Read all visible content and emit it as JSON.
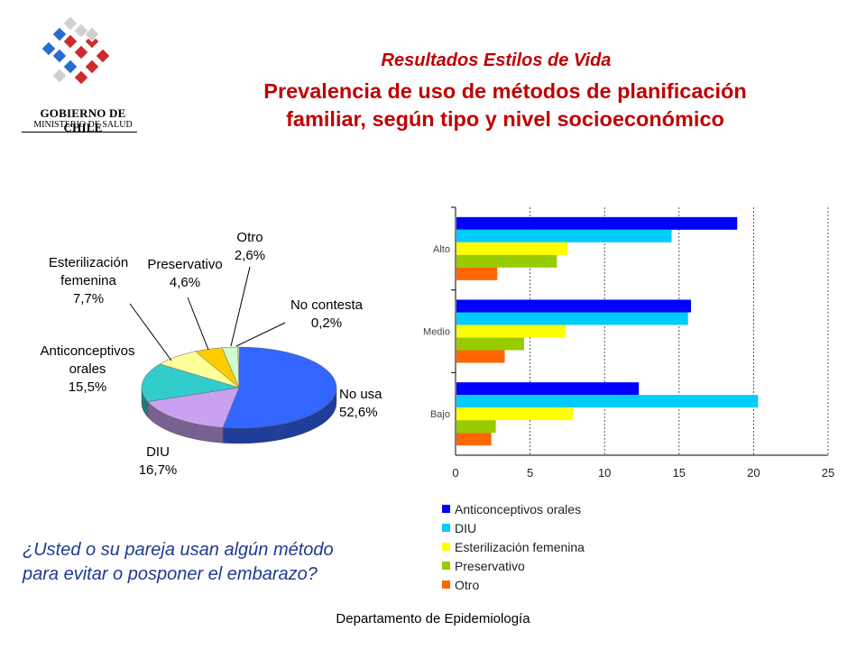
{
  "header": {
    "logo_line1": "GOBIERNO DE CHILE",
    "logo_line2": "MINISTERIO DE SALUD",
    "subtitle": "Resultados Estilos de Vida",
    "title_line1": "Prevalencia de uso de métodos de planificación",
    "title_line2": "familiar, según tipo y nivel socioeconómico"
  },
  "question": {
    "line1": "¿Usted o su pareja usan algún método",
    "line2": "para evitar o posponer el embarazo?"
  },
  "footer": "Departamento de Epidemiología",
  "colors": {
    "title": "#c00000",
    "question": "#1f3a93"
  },
  "chart_data": [
    {
      "type": "pie",
      "slices": [
        {
          "label": "No usa",
          "value": 52.6,
          "value_text": "52,6%",
          "color": "#3366ff"
        },
        {
          "label": "DIU",
          "value": 16.7,
          "value_text": "16,7%",
          "color": "#c8a2f0"
        },
        {
          "label": "Anticonceptivos orales",
          "value": 15.5,
          "value_text": "15,5%",
          "color": "#33cccc"
        },
        {
          "label": "Esterilización femenina",
          "value": 7.7,
          "value_text": "7,7%",
          "color": "#ffff99"
        },
        {
          "label": "Preservativo",
          "value": 4.6,
          "value_text": "4,6%",
          "color": "#ffcc00"
        },
        {
          "label": "Otro",
          "value": 2.6,
          "value_text": "2,6%",
          "color": "#ccffcc"
        },
        {
          "label": "No contesta",
          "value": 0.2,
          "value_text": "0,2%",
          "color": "#ffffff"
        }
      ]
    },
    {
      "type": "bar",
      "orientation": "horizontal",
      "categories": [
        "Alto",
        "Medio",
        "Bajo"
      ],
      "series": [
        {
          "name": "Anticonceptivos orales",
          "color": "#0000ff",
          "values": [
            18.9,
            15.8,
            12.3
          ]
        },
        {
          "name": "DIU",
          "color": "#00ccff",
          "values": [
            14.5,
            15.6,
            20.3
          ]
        },
        {
          "name": "Esterilización femenina",
          "color": "#ffff00",
          "values": [
            7.5,
            7.4,
            7.9
          ]
        },
        {
          "name": "Preservativo",
          "color": "#99cc00",
          "values": [
            6.8,
            4.6,
            2.7
          ]
        },
        {
          "name": "Otro",
          "color": "#ff6600",
          "values": [
            2.8,
            3.3,
            2.4
          ]
        }
      ],
      "xlabel": "%",
      "xlim": [
        0,
        25
      ],
      "xticks": [
        0,
        5,
        10,
        15,
        20,
        25
      ],
      "grid": true,
      "legend": "bottom"
    }
  ]
}
